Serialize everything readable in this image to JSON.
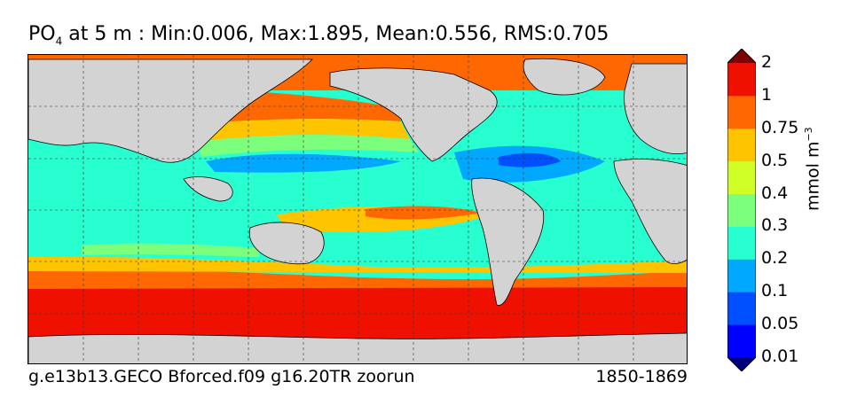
{
  "title": {
    "variable_main": "PO",
    "variable_sub": "4",
    "rest": " at 5 m : Min:0.006, Max:1.895, Mean:0.556, RMS:0.705"
  },
  "footer": {
    "run_name": "g.e13b13.GECO Bforced.f09 g16.20TR zoorun",
    "years": "1850-1869"
  },
  "colorbar": {
    "unit_main": "mmol m",
    "unit_sup": "−3",
    "labels": [
      "0.01",
      "0.05",
      "0.1",
      "0.2",
      "0.3",
      "0.4",
      "0.5",
      "0.75",
      "1",
      "2"
    ],
    "colors": [
      "#00007f",
      "#0000ff",
      "#0050ff",
      "#00a8ff",
      "#28ffd0",
      "#7cff7c",
      "#d0ff28",
      "#ffc400",
      "#ff6800",
      "#f01000",
      "#7f0000"
    ],
    "land_color": "#d3d3d3"
  }
}
